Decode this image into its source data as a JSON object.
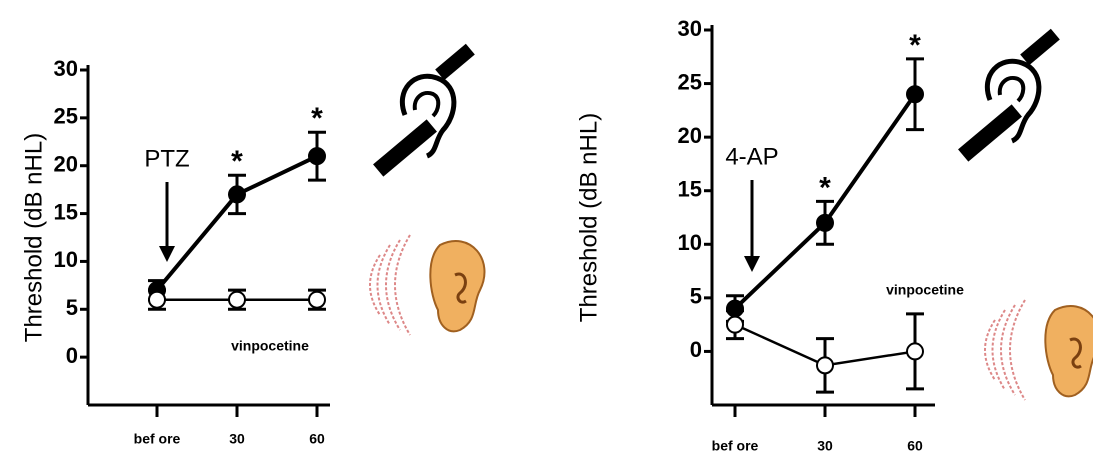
{
  "chart_data": [
    {
      "type": "line",
      "y_label": "Threshold (dB nHL)",
      "categories": [
        "bef ore",
        "30",
        "60"
      ],
      "ylim": [
        -5,
        30
      ],
      "yticks": [
        0,
        5,
        10,
        15,
        20,
        25,
        30
      ],
      "annotation": "PTZ",
      "significance": [
        null,
        "*",
        "*"
      ],
      "series": [
        {
          "color": "#000000",
          "marker": "filled",
          "values": [
            7,
            17,
            21
          ],
          "errors": [
            1,
            2,
            2.5
          ]
        },
        {
          "name": "vinpocetine",
          "color": "#000000",
          "marker": "open",
          "values": [
            6,
            6,
            6
          ],
          "errors": [
            1,
            1,
            1
          ]
        }
      ]
    },
    {
      "type": "line",
      "y_label": "Threshold (dB nHL)",
      "categories": [
        "bef ore",
        "30",
        "60"
      ],
      "ylim": [
        -5,
        30
      ],
      "yticks": [
        0,
        5,
        10,
        15,
        20,
        25,
        30
      ],
      "annotation": "4-AP",
      "significance": [
        null,
        "*",
        "*"
      ],
      "series": [
        {
          "color": "#000000",
          "marker": "filled",
          "values": [
            4,
            12,
            24
          ],
          "errors": [
            1.2,
            2,
            3.3
          ]
        },
        {
          "name": "vinpocetine",
          "color": "#000000",
          "marker": "open",
          "values": [
            2.5,
            -1.3,
            0
          ],
          "errors": [
            1.3,
            2.5,
            3.5
          ]
        }
      ]
    }
  ]
}
